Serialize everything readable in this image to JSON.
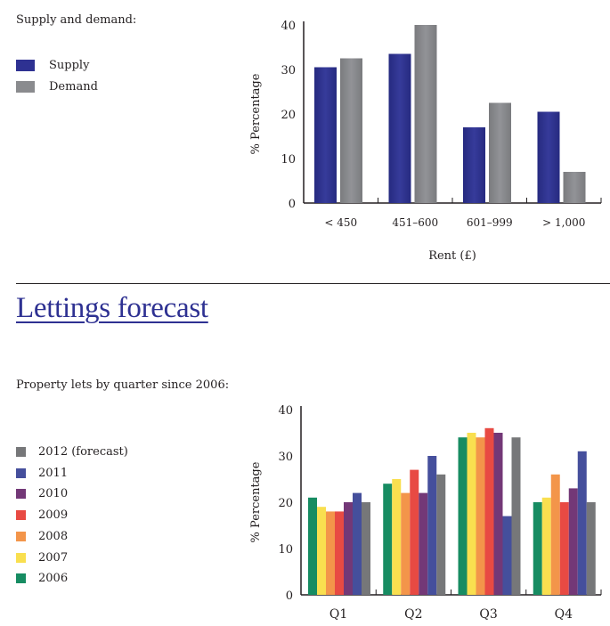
{
  "section1": {
    "subtitle": "Supply and demand:"
  },
  "section2": {
    "title": "Lettings forecast",
    "subtitle": "Property lets by quarter since 2006:"
  },
  "chart_data": [
    {
      "type": "bar",
      "title": "Supply and demand:",
      "xlabel": "Rent (£)",
      "ylabel": "% Percentage",
      "ylim": [
        0,
        40
      ],
      "yticks": [
        "0",
        "10",
        "20",
        "30",
        "40"
      ],
      "categories": [
        "< 450",
        "451–600",
        "601–999",
        "> 1,000"
      ],
      "legend_position": "left",
      "series": [
        {
          "name": "Supply",
          "color": "#2e3192",
          "values": [
            30.5,
            33.5,
            17,
            20.5
          ]
        },
        {
          "name": "Demand",
          "color": "#8a8b8e",
          "values": [
            32.5,
            40,
            22.5,
            7
          ]
        }
      ]
    },
    {
      "type": "bar",
      "title": "Property lets by quarter since 2006:",
      "xlabel": "",
      "ylabel": "% Percentage",
      "ylim": [
        0,
        40
      ],
      "yticks": [
        "0",
        "10",
        "20",
        "30",
        "40"
      ],
      "categories": [
        "Q1",
        "Q2",
        "Q3",
        "Q4"
      ],
      "legend_position": "left",
      "legend_order": [
        "2012 (forecast)",
        "2011",
        "2010",
        "2009",
        "2008",
        "2007",
        "2006"
      ],
      "series": [
        {
          "name": "2006",
          "color": "#178c62",
          "values": [
            21,
            24,
            34,
            20
          ]
        },
        {
          "name": "2007",
          "color": "#f9df4f",
          "values": [
            19,
            25,
            35,
            21
          ]
        },
        {
          "name": "2008",
          "color": "#f3954a",
          "values": [
            18,
            22,
            34,
            26
          ]
        },
        {
          "name": "2009",
          "color": "#e84a43",
          "values": [
            18,
            27,
            36,
            20
          ]
        },
        {
          "name": "2010",
          "color": "#733877",
          "values": [
            20,
            22,
            35,
            23
          ]
        },
        {
          "name": "2011",
          "color": "#454f9c",
          "values": [
            22,
            30,
            17,
            31
          ]
        },
        {
          "name": "2012 (forecast)",
          "color": "#767779",
          "values": [
            20,
            26,
            34,
            20
          ]
        }
      ]
    }
  ]
}
